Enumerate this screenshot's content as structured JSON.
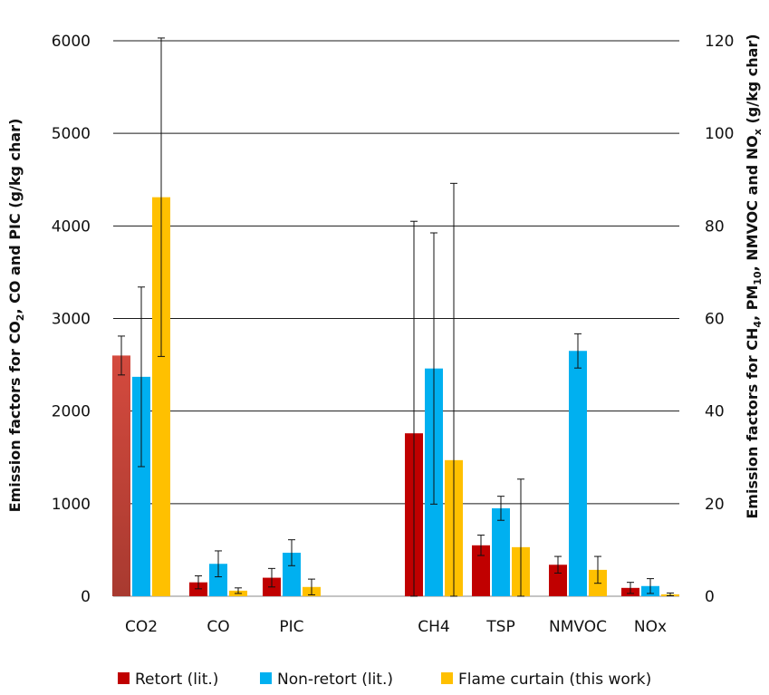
{
  "chart_data": {
    "type": "bar",
    "categories": [
      "CO2",
      "CO",
      "PIC",
      "CH4",
      "TSP",
      "NMVOC",
      "NOx"
    ],
    "left_axis": {
      "label_parts": [
        "Emission factors for CO",
        "2",
        ", CO and PIC (g/kg char)"
      ],
      "ylim": [
        0,
        6000
      ],
      "ticks": [
        "0",
        "1000",
        "2000",
        "3000",
        "4000",
        "5000",
        "6000"
      ],
      "categories": [
        "CO2",
        "CO",
        "PIC"
      ]
    },
    "right_axis": {
      "label_parts": [
        "Emission factors for CH",
        "4",
        ", PM",
        "10",
        ", NMVOC and NO",
        "x",
        " (g/kg char)"
      ],
      "ylim": [
        0,
        120
      ],
      "ticks": [
        "0",
        "20",
        "40",
        "60",
        "80",
        "100",
        "120"
      ],
      "categories": [
        "CH4",
        "TSP",
        "NMVOC",
        "NOx"
      ]
    },
    "series": [
      {
        "name": "Retort (lit.)",
        "color": "#c00000",
        "values": [
          2600,
          150,
          200,
          35.2,
          11,
          6.8,
          1.8
        ],
        "errors": [
          210,
          70,
          100,
          45.8,
          2.2,
          1.8,
          1.2
        ]
      },
      {
        "name": "Non-retort (lit.)",
        "color": "#00b0f0",
        "values": [
          2370,
          350,
          470,
          49.2,
          19,
          53,
          2.2
        ],
        "errors": [
          970,
          140,
          140,
          29.3,
          2.6,
          3.7,
          1.6
        ]
      },
      {
        "name": "Flame curtain (this work)",
        "color": "#ffc000",
        "values": [
          4310,
          60,
          100,
          29.4,
          10.6,
          5.7,
          0.4
        ],
        "errors": [
          1720,
          30,
          85,
          59.8,
          14.7,
          2.9,
          0.3
        ]
      }
    ],
    "grid": true,
    "legend_position": "bottom"
  }
}
